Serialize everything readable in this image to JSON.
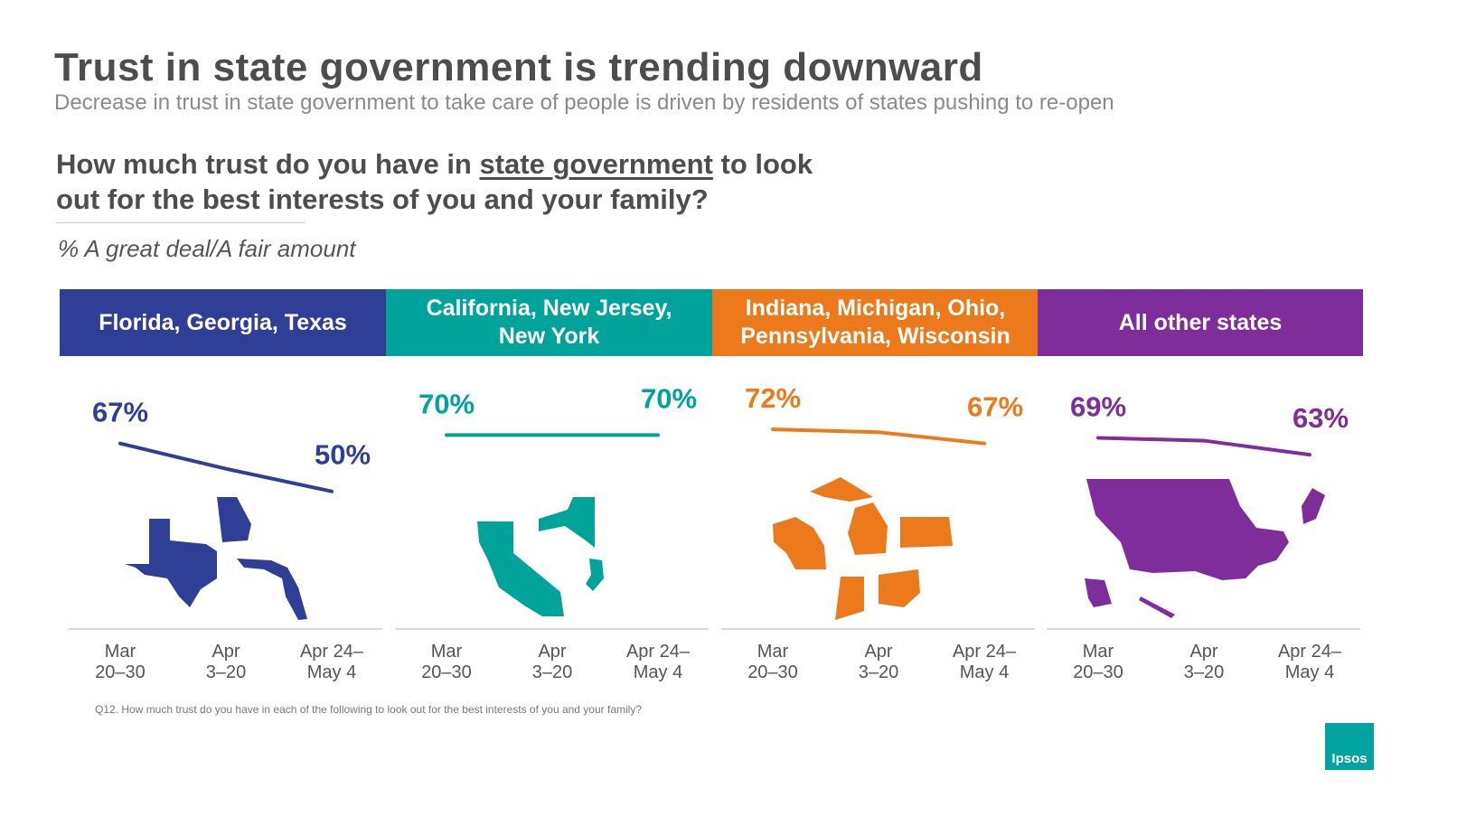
{
  "header": {
    "title": "Trust in state government is trending downward",
    "subtitle": "Decrease in trust in state government to take care of people is driven by residents of states pushing to re-open"
  },
  "question": [
    "How much trust do you have in ",
    "state government",
    " to look out for the best interests of you and your family?"
  ],
  "base": "% A great deal/A fair amount",
  "footnote": "Q12. How much trust do you have in each of the following to look out for the best interests of you and your family?",
  "logo": "Ipsos",
  "chart_data": [
    {
      "type": "line",
      "title": "Florida, Georgia, Texas",
      "color": "#2e3f95",
      "categories": [
        [
          "Mar",
          "20–30"
        ],
        [
          "Apr",
          "3–20"
        ],
        [
          "Apr 24–",
          "May 4"
        ]
      ],
      "values": [
        67,
        58,
        50
      ],
      "value_labels": [
        "67%",
        null,
        "50%"
      ],
      "ylim": [
        30,
        90
      ]
    },
    {
      "type": "line",
      "title": "California, New Jersey, New York",
      "color": "#00a39a",
      "categories": [
        [
          "Mar",
          "20–30"
        ],
        [
          "Apr",
          "3–20"
        ],
        [
          "Apr 24–",
          "May 4"
        ]
      ],
      "values": [
        70,
        70,
        70
      ],
      "value_labels": [
        "70%",
        null,
        "70%"
      ],
      "ylim": [
        30,
        90
      ]
    },
    {
      "type": "line",
      "title": "Indiana, Michigan, Ohio, Pennsylvania, Wisconsin",
      "color": "#ec7a1c",
      "categories": [
        [
          "Mar",
          "20–30"
        ],
        [
          "Apr",
          "3–20"
        ],
        [
          "Apr 24–",
          "May 4"
        ]
      ],
      "values": [
        72,
        71,
        67
      ],
      "value_labels": [
        "72%",
        null,
        "67%"
      ],
      "ylim": [
        30,
        90
      ]
    },
    {
      "type": "line",
      "title": "All other states",
      "color": "#7f2d9b",
      "categories": [
        [
          "Mar",
          "20–30"
        ],
        [
          "Apr",
          "3–20"
        ],
        [
          "Apr 24–",
          "May 4"
        ]
      ],
      "values": [
        69,
        68,
        63
      ],
      "value_labels": [
        "69%",
        null,
        "63%"
      ],
      "ylim": [
        30,
        90
      ]
    }
  ]
}
